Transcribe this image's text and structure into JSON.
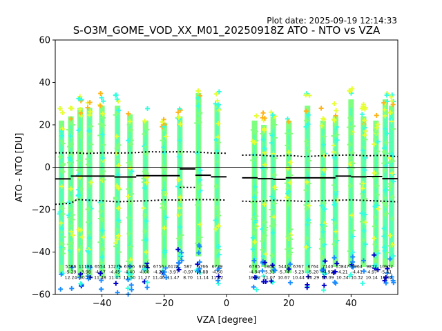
{
  "header": {
    "plot_date": "Plot date: 2025-09-19 12:14:33",
    "title": "S-O3M_GOME_VOD_XX_M01_20250918Z ATO - NTO vs VZA"
  },
  "colors": {
    "green": "#7fff7f",
    "cyan": "#33ffe0",
    "yellow": "#e6ff33",
    "orange": "#ffb31a",
    "blue": "#1a8cff",
    "navy": "#0000cc",
    "mean_line": "#000000"
  },
  "chart_data": {
    "type": "scatter",
    "title": "S-O3M_GOME_VOD_XX_M01_20250918Z ATO - NTO vs VZA",
    "xlabel": "VZA [degree]",
    "ylabel": "ATO - NTO [DU]",
    "xlim": [
      -55,
      55
    ],
    "ylim": [
      -60,
      60
    ],
    "xticks": [
      -40,
      -20,
      0,
      20,
      40
    ],
    "yticks": [
      -60,
      -40,
      -20,
      0,
      20,
      40,
      60
    ],
    "zero_line": 0,
    "column_vza": [
      -53,
      -50,
      -47,
      -44,
      -40,
      -35,
      -31,
      -26,
      -20,
      -15,
      -9,
      -3,
      9,
      12,
      15,
      20,
      26,
      31,
      35,
      40,
      44,
      48,
      51,
      53
    ],
    "column_ranges": [
      [
        -58,
        28
      ],
      [
        -58,
        30
      ],
      [
        -60,
        34
      ],
      [
        -60,
        34
      ],
      [
        -60,
        35
      ],
      [
        -60,
        35
      ],
      [
        -60,
        31
      ],
      [
        -58,
        28
      ],
      [
        -55,
        27
      ],
      [
        -52,
        30
      ],
      [
        -50,
        41
      ],
      [
        -55,
        36
      ],
      [
        -58,
        28
      ],
      [
        -55,
        26
      ],
      [
        -58,
        30
      ],
      [
        -58,
        28
      ],
      [
        -58,
        35
      ],
      [
        -58,
        28
      ],
      [
        -55,
        30
      ],
      [
        -55,
        38
      ],
      [
        -55,
        30
      ],
      [
        -55,
        28
      ],
      [
        -55,
        38
      ],
      [
        -55,
        35
      ]
    ],
    "mean_segments": [
      {
        "x": [
          -55,
          -50
        ],
        "y": -5.5
      },
      {
        "x": [
          -50,
          -36
        ],
        "y": -4.2
      },
      {
        "x": [
          -36,
          -29
        ],
        "y": -4.6
      },
      {
        "x": [
          -29,
          -15
        ],
        "y": -4.0
      },
      {
        "x": [
          -15,
          -10
        ],
        "y": -0.8
      },
      {
        "x": [
          -10,
          -5
        ],
        "y": -3.8
      },
      {
        "x": [
          -5,
          0
        ],
        "y": -4.5
      },
      {
        "x": [
          5,
          10
        ],
        "y": -5.0
      },
      {
        "x": [
          10,
          15
        ],
        "y": -5.4
      },
      {
        "x": [
          15,
          19
        ],
        "y": -5.7
      },
      {
        "x": [
          19,
          35
        ],
        "y": -5.0
      },
      {
        "x": [
          35,
          40
        ],
        "y": -4.2
      },
      {
        "x": [
          40,
          45
        ],
        "y": -4.5
      },
      {
        "x": [
          45,
          50
        ],
        "y": -4.4
      },
      {
        "x": [
          50,
          55
        ],
        "y": -5.4
      }
    ],
    "upper_dotted": {
      "x": [
        -55,
        -48,
        -45,
        -40,
        -35,
        -30,
        -25,
        -20,
        -15,
        -10,
        -5,
        0,
        null,
        5,
        10,
        15,
        20,
        25,
        30,
        35,
        40,
        45,
        50,
        55
      ],
      "y": [
        6.8,
        6.8,
        6.5,
        6.8,
        6.7,
        6.8,
        7.3,
        7.2,
        7.3,
        7.2,
        6.7,
        6.6,
        null,
        5.7,
        5.8,
        5.2,
        5.6,
        5.0,
        5.4,
        5.6,
        5.8,
        5.4,
        5.6,
        5.0
      ]
    },
    "lower_dotted": {
      "x": [
        -55,
        -50,
        -48,
        -45,
        -40,
        -35,
        -30,
        -25,
        -20,
        -15,
        -10,
        -5,
        0,
        null,
        5,
        10,
        15,
        20,
        25,
        30,
        35,
        40,
        45,
        50,
        55
      ],
      "y": [
        -17.5,
        -17.0,
        -15.2,
        -15.5,
        -15.8,
        -16.3,
        -16.0,
        -15.8,
        -15.4,
        -15.5,
        -15.3,
        -15.3,
        -15.5,
        null,
        -16.0,
        -16.2,
        -15.6,
        -15.8,
        -16.1,
        -15.8,
        -15.6,
        -15.4,
        -15.7,
        -16.0,
        -16.3
      ]
    },
    "dotted_extra": [
      {
        "x": [
          -15,
          -10
        ],
        "y": -9.5
      }
    ],
    "bin_stats": [
      {
        "count": "5366",
        "mean": "-5.29",
        "std": "12.24"
      },
      {
        "count": "11180",
        "mean": "-3.98",
        "std": "10.73"
      },
      {
        "count": "6554",
        "mean": "-4.17",
        "std": "11.48"
      },
      {
        "count": "13279",
        "mean": "-4.45",
        "std": "11.43"
      },
      {
        "count": "6706",
        "mean": "-4.40",
        "std": "11.50"
      },
      {
        "count": "6786",
        "mean": "-4.00",
        "std": "11.27"
      },
      {
        "count": "6756",
        "mean": "-4.20",
        "std": "11.40"
      },
      {
        "count": "6178",
        "mean": "-3.97",
        "std": "11.47"
      },
      {
        "count": "587",
        "mean": "-0.97",
        "std": "8.70"
      },
      {
        "count": "6766",
        "mean": "-3.88",
        "std": "11.14"
      },
      {
        "count": "6729",
        "mean": "-4.50",
        "std": "11.02"
      },
      {
        "count": "6785",
        "mean": "-4.94",
        "std": "10.72"
      },
      {
        "count": "1804",
        "mean": "-5.31",
        "std": "11.07"
      },
      {
        "count": "5441",
        "mean": "-5.74",
        "std": "10.67"
      },
      {
        "count": "6767",
        "mean": "-5.23",
        "std": "10.44"
      },
      {
        "count": "6764",
        "mean": "-5.20",
        "std": "10.29"
      },
      {
        "count": "7140",
        "mean": "-4.92",
        "std": "10.09"
      },
      {
        "count": "13847",
        "mean": "-4.21",
        "std": "10.34"
      },
      {
        "count": "6964",
        "mean": "-4.41",
        "std": "10.32"
      },
      {
        "count": "9872",
        "mean": "-4.97",
        "std": "10.14"
      },
      {
        "count": "10972",
        "mean": "-5.41",
        "std": "10.52"
      }
    ]
  }
}
